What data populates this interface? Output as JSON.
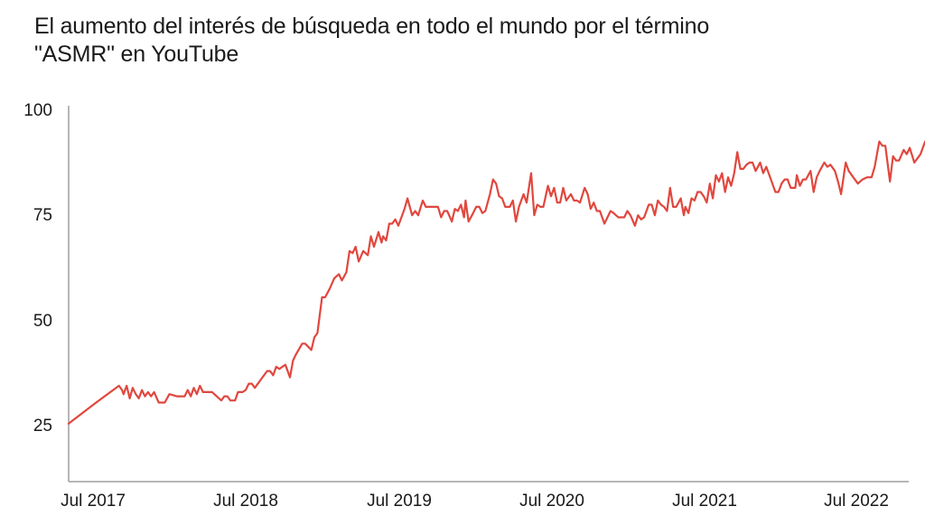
{
  "title": "El aumento del interés de búsqueda en todo el mundo por el término \"ASMR\" en YouTube",
  "title_lines": [
    "El aumento del interés de búsqueda en todo el mundo por el término",
    "\"ASMR\" en YouTube"
  ],
  "colors": {
    "line": "#e0473e",
    "axis": "#9e9e9e",
    "text": "#1a1a1a",
    "background": "#ffffff"
  },
  "y_ticks": [
    {
      "label": "100",
      "value": 100
    },
    {
      "label": "75",
      "value": 75
    },
    {
      "label": "50",
      "value": 50
    },
    {
      "label": "25",
      "value": 25
    }
  ],
  "x_ticks": [
    {
      "label": "Jul 2017",
      "x": 0.0
    },
    {
      "label": "Jul 2018",
      "x": 1.0
    },
    {
      "label": "Jul 2019",
      "x": 2.0
    },
    {
      "label": "Jul 2020",
      "x": 3.0
    },
    {
      "label": "Jul 2021",
      "x": 4.0
    },
    {
      "label": "Jul 2022",
      "x": 5.0
    }
  ],
  "chart_data": {
    "type": "line",
    "title": "El aumento del interés de búsqueda en todo el mundo por el término \"ASMR\" en YouTube",
    "xlabel": "",
    "ylabel": "",
    "ylim": [
      12,
      102
    ],
    "xlim": [
      -0.16,
      5.35
    ],
    "grid": false,
    "legend": null,
    "x_tick_labels": [
      "Jul 2017",
      "Jul 2018",
      "Jul 2019",
      "Jul 2020",
      "Jul 2021",
      "Jul 2022"
    ],
    "y_tick_labels": [
      "25",
      "50",
      "75",
      "100"
    ],
    "series": [
      {
        "name": "ASMR",
        "x_unit": "years since Jul 2017",
        "points": [
          [
            -0.16,
            26
          ],
          [
            0.02,
            31
          ],
          [
            0.17,
            35
          ],
          [
            0.19,
            34
          ],
          [
            0.2,
            33
          ],
          [
            0.22,
            35
          ],
          [
            0.24,
            32
          ],
          [
            0.26,
            34.5
          ],
          [
            0.28,
            33
          ],
          [
            0.3,
            32
          ],
          [
            0.32,
            34
          ],
          [
            0.34,
            32.5
          ],
          [
            0.36,
            33.5
          ],
          [
            0.38,
            32.5
          ],
          [
            0.4,
            33.5
          ],
          [
            0.43,
            31
          ],
          [
            0.47,
            31
          ],
          [
            0.5,
            33
          ],
          [
            0.55,
            32.5
          ],
          [
            0.6,
            32.5
          ],
          [
            0.62,
            34
          ],
          [
            0.64,
            32.5
          ],
          [
            0.66,
            34.5
          ],
          [
            0.68,
            33
          ],
          [
            0.7,
            35
          ],
          [
            0.72,
            33.5
          ],
          [
            0.78,
            33.5
          ],
          [
            0.81,
            32.5
          ],
          [
            0.84,
            31.5
          ],
          [
            0.86,
            32.5
          ],
          [
            0.88,
            32.5
          ],
          [
            0.9,
            31.5
          ],
          [
            0.93,
            31.5
          ],
          [
            0.95,
            33.5
          ],
          [
            0.98,
            33.5
          ],
          [
            1.0,
            34
          ],
          [
            1.02,
            35.5
          ],
          [
            1.04,
            35.5
          ],
          [
            1.06,
            34.5
          ],
          [
            1.1,
            36.5
          ],
          [
            1.14,
            38.5
          ],
          [
            1.16,
            38.5
          ],
          [
            1.18,
            37.5
          ],
          [
            1.2,
            39.5
          ],
          [
            1.22,
            39
          ],
          [
            1.24,
            39.5
          ],
          [
            1.26,
            40
          ],
          [
            1.29,
            37
          ],
          [
            1.31,
            41
          ],
          [
            1.33,
            42.5
          ],
          [
            1.37,
            45
          ],
          [
            1.39,
            45
          ],
          [
            1.43,
            43.5
          ],
          [
            1.45,
            46.5
          ],
          [
            1.47,
            47.5
          ],
          [
            1.5,
            56
          ],
          [
            1.52,
            56
          ],
          [
            1.55,
            58
          ],
          [
            1.58,
            60.5
          ],
          [
            1.61,
            61.5
          ],
          [
            1.63,
            60
          ],
          [
            1.66,
            62
          ],
          [
            1.68,
            67
          ],
          [
            1.7,
            66.5
          ],
          [
            1.72,
            68
          ],
          [
            1.74,
            64.5
          ],
          [
            1.77,
            67
          ],
          [
            1.8,
            66
          ],
          [
            1.82,
            70.5
          ],
          [
            1.84,
            68
          ],
          [
            1.87,
            71.5
          ],
          [
            1.89,
            69
          ],
          [
            1.9,
            70.5
          ],
          [
            1.92,
            69.5
          ],
          [
            1.94,
            73.5
          ],
          [
            1.96,
            73.5
          ],
          [
            1.98,
            74.5
          ],
          [
            2.0,
            73
          ],
          [
            2.04,
            77
          ],
          [
            2.06,
            79.5
          ],
          [
            2.09,
            75.5
          ],
          [
            2.11,
            76.5
          ],
          [
            2.13,
            75.5
          ],
          [
            2.16,
            79
          ],
          [
            2.18,
            77.5
          ],
          [
            2.26,
            77.5
          ],
          [
            2.28,
            75
          ],
          [
            2.3,
            76.5
          ],
          [
            2.32,
            76.5
          ],
          [
            2.35,
            74
          ],
          [
            2.37,
            77
          ],
          [
            2.39,
            76.5
          ],
          [
            2.41,
            78
          ],
          [
            2.43,
            75
          ],
          [
            2.44,
            79
          ],
          [
            2.46,
            74
          ],
          [
            2.49,
            76
          ],
          [
            2.51,
            77.5
          ],
          [
            2.53,
            77.5
          ],
          [
            2.55,
            76
          ],
          [
            2.57,
            76.5
          ],
          [
            2.6,
            80.5
          ],
          [
            2.62,
            84
          ],
          [
            2.64,
            83
          ],
          [
            2.66,
            80
          ],
          [
            2.68,
            79.5
          ],
          [
            2.7,
            77.5
          ],
          [
            2.73,
            77.5
          ],
          [
            2.75,
            79
          ],
          [
            2.77,
            74
          ],
          [
            2.79,
            77.5
          ],
          [
            2.82,
            80.5
          ],
          [
            2.84,
            78.5
          ],
          [
            2.87,
            85.5
          ],
          [
            2.89,
            75.5
          ],
          [
            2.91,
            78
          ],
          [
            2.93,
            77.5
          ],
          [
            2.95,
            77.5
          ],
          [
            2.98,
            82.5
          ],
          [
            3.0,
            80
          ],
          [
            3.02,
            82
          ],
          [
            3.04,
            78.5
          ],
          [
            3.06,
            78.5
          ],
          [
            3.08,
            82
          ],
          [
            3.1,
            79
          ],
          [
            3.13,
            80.5
          ],
          [
            3.15,
            79
          ],
          [
            3.17,
            79
          ],
          [
            3.19,
            78.5
          ],
          [
            3.22,
            82
          ],
          [
            3.24,
            80.5
          ],
          [
            3.26,
            77
          ],
          [
            3.28,
            78.5
          ],
          [
            3.3,
            76.5
          ],
          [
            3.32,
            76.5
          ],
          [
            3.35,
            73.5
          ],
          [
            3.37,
            75
          ],
          [
            3.39,
            76.5
          ],
          [
            3.41,
            76
          ],
          [
            3.44,
            75
          ],
          [
            3.48,
            75
          ],
          [
            3.5,
            76.5
          ],
          [
            3.52,
            75.5
          ],
          [
            3.55,
            73
          ],
          [
            3.57,
            75.5
          ],
          [
            3.59,
            74.5
          ],
          [
            3.61,
            75
          ],
          [
            3.64,
            78
          ],
          [
            3.66,
            78
          ],
          [
            3.68,
            75.5
          ],
          [
            3.7,
            79
          ],
          [
            3.72,
            78
          ],
          [
            3.74,
            77.5
          ],
          [
            3.76,
            76.5
          ],
          [
            3.78,
            82
          ],
          [
            3.8,
            77.5
          ],
          [
            3.82,
            77.5
          ],
          [
            3.85,
            79.5
          ],
          [
            3.87,
            75.5
          ],
          [
            3.88,
            77.5
          ],
          [
            3.9,
            76
          ],
          [
            3.92,
            79.5
          ],
          [
            3.94,
            79
          ],
          [
            3.96,
            81
          ],
          [
            3.98,
            81
          ],
          [
            4.0,
            80
          ],
          [
            4.02,
            78.5
          ],
          [
            4.04,
            83
          ],
          [
            4.06,
            79.5
          ],
          [
            4.08,
            85
          ],
          [
            4.1,
            83.5
          ],
          [
            4.12,
            85.5
          ],
          [
            4.14,
            81
          ],
          [
            4.16,
            84.5
          ],
          [
            4.18,
            82.5
          ],
          [
            4.2,
            85.5
          ],
          [
            4.22,
            90.5
          ],
          [
            4.24,
            86.5
          ],
          [
            4.26,
            86.5
          ],
          [
            4.28,
            87.5
          ],
          [
            4.3,
            88
          ],
          [
            4.32,
            88
          ],
          [
            4.34,
            86
          ],
          [
            4.37,
            88
          ],
          [
            4.39,
            85.5
          ],
          [
            4.41,
            87
          ],
          [
            4.43,
            85
          ],
          [
            4.47,
            81
          ],
          [
            4.49,
            81
          ],
          [
            4.51,
            83
          ],
          [
            4.53,
            84
          ],
          [
            4.55,
            84
          ],
          [
            4.57,
            82
          ],
          [
            4.6,
            82
          ],
          [
            4.61,
            85
          ],
          [
            4.63,
            82.5
          ],
          [
            4.65,
            84
          ],
          [
            4.67,
            84
          ],
          [
            4.7,
            86
          ],
          [
            4.72,
            81
          ],
          [
            4.74,
            84.5
          ],
          [
            4.76,
            86
          ],
          [
            4.79,
            88
          ],
          [
            4.81,
            87
          ],
          [
            4.83,
            87.5
          ],
          [
            4.86,
            86
          ],
          [
            4.88,
            83.5
          ],
          [
            4.9,
            80.5
          ],
          [
            4.93,
            88
          ],
          [
            4.95,
            86
          ],
          [
            4.98,
            84.5
          ],
          [
            5.01,
            83
          ],
          [
            5.04,
            84
          ],
          [
            5.07,
            84.5
          ],
          [
            5.1,
            84.5
          ],
          [
            5.12,
            87
          ],
          [
            5.15,
            93
          ],
          [
            5.17,
            92
          ],
          [
            5.19,
            92
          ],
          [
            5.22,
            83.5
          ],
          [
            5.24,
            89.5
          ],
          [
            5.26,
            88.5
          ],
          [
            5.28,
            88.5
          ],
          [
            5.31,
            91
          ],
          [
            5.33,
            90
          ],
          [
            5.35,
            91.5
          ],
          [
            5.38,
            88
          ],
          [
            5.4,
            89
          ],
          [
            5.42,
            90
          ],
          [
            5.45,
            93
          ]
        ]
      }
    ]
  }
}
